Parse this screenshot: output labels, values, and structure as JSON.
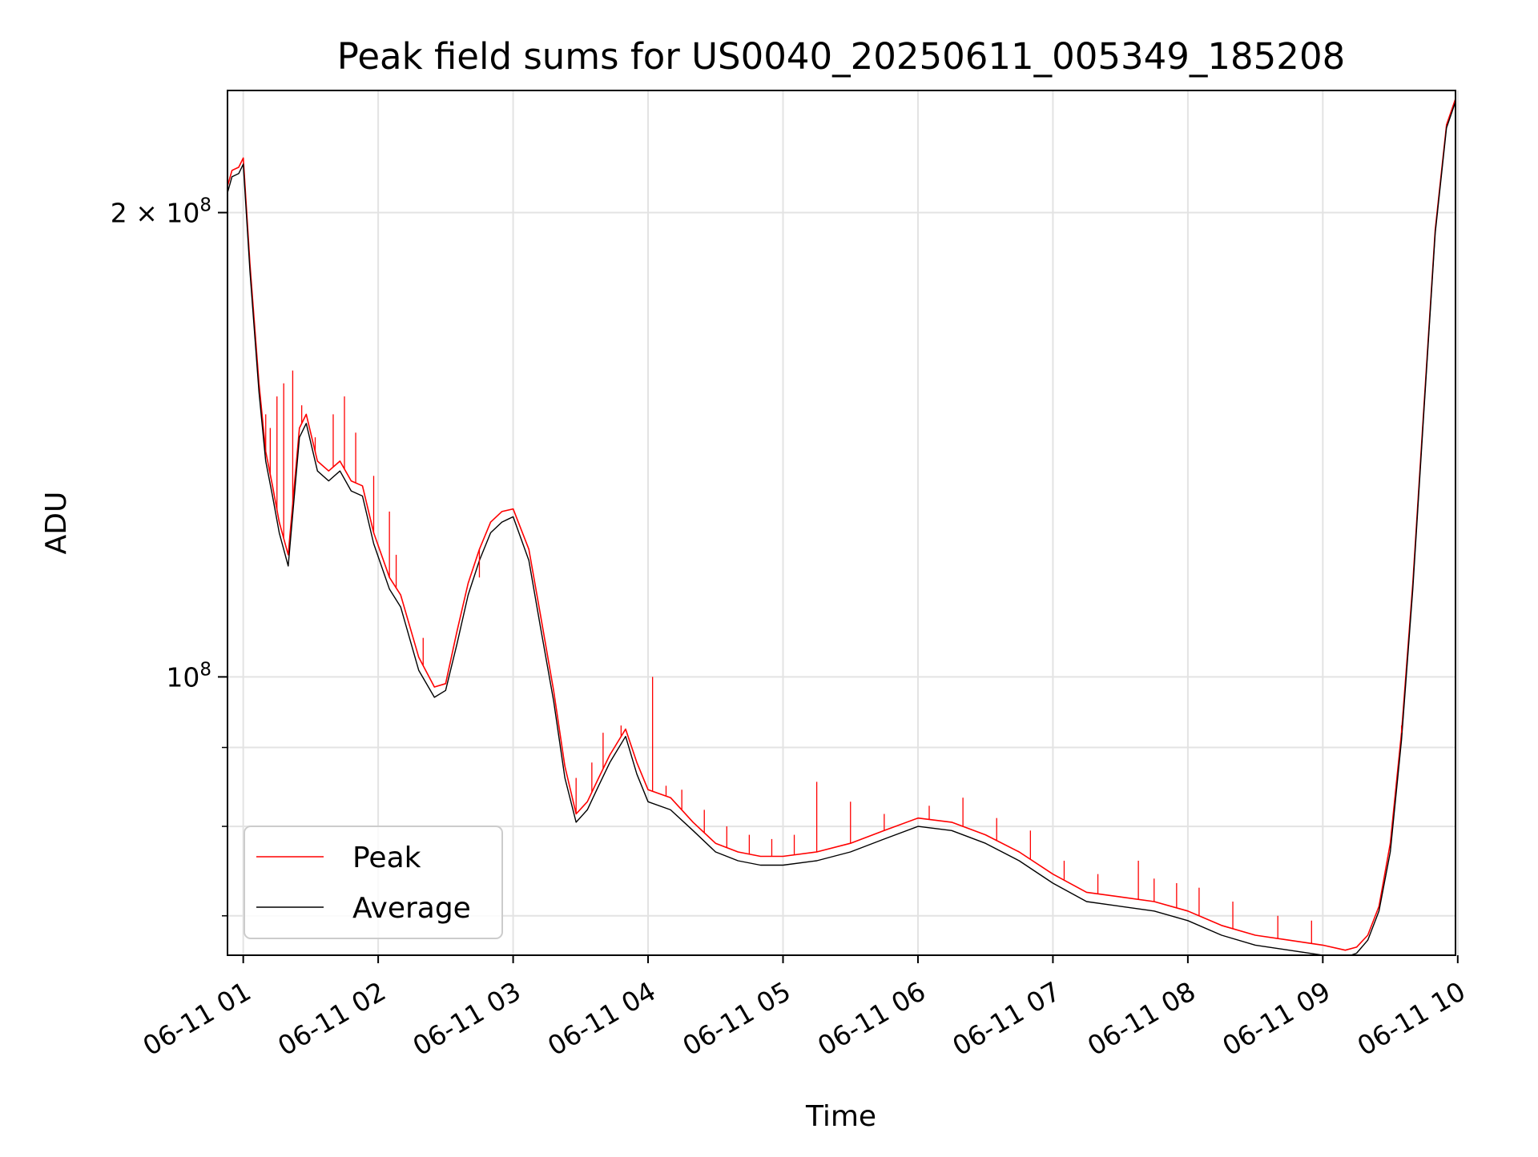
{
  "chart_data": {
    "type": "line",
    "title": "Peak field sums for US0040_20250611_005349_185208",
    "xlabel": "Time",
    "ylabel": "ADU",
    "yscale": "log",
    "ylim": [
      66000000,
      240000000
    ],
    "xlim": [
      "2025-06-11 00:53",
      "2025-06-11 09:59"
    ],
    "grid": true,
    "legend_position": "lower-left",
    "x_ticks": [
      {
        "time": "2025-06-11 01:00",
        "label": "06-11 01"
      },
      {
        "time": "2025-06-11 02:00",
        "label": "06-11 02"
      },
      {
        "time": "2025-06-11 03:00",
        "label": "06-11 03"
      },
      {
        "time": "2025-06-11 04:00",
        "label": "06-11 04"
      },
      {
        "time": "2025-06-11 05:00",
        "label": "06-11 05"
      },
      {
        "time": "2025-06-11 06:00",
        "label": "06-11 06"
      },
      {
        "time": "2025-06-11 07:00",
        "label": "06-11 07"
      },
      {
        "time": "2025-06-11 08:00",
        "label": "06-11 08"
      },
      {
        "time": "2025-06-11 09:00",
        "label": "06-11 09"
      },
      {
        "time": "2025-06-11 10:00",
        "label": "06-11 10"
      }
    ],
    "y_ticks": [
      {
        "value": 200000000,
        "label_base": "2 × 10",
        "label_exp": "8"
      },
      {
        "value": 100000000,
        "label_base": "10",
        "label_exp": "8"
      }
    ],
    "y_minor_ticks": [
      70000000,
      80000000,
      90000000
    ],
    "series": [
      {
        "name": "Peak",
        "color": "#ff0000",
        "time": [
          "00:53",
          "00:55",
          "00:58",
          "01:00",
          "01:03",
          "01:07",
          "01:10",
          "01:13",
          "01:16",
          "01:20",
          "01:25",
          "01:28",
          "01:33",
          "01:38",
          "01:43",
          "01:48",
          "01:53",
          "01:58",
          "02:05",
          "02:10",
          "02:18",
          "02:25",
          "02:30",
          "02:35",
          "02:40",
          "02:45",
          "02:50",
          "02:55",
          "03:00",
          "03:07",
          "03:12",
          "03:18",
          "03:23",
          "03:28",
          "03:33",
          "03:38",
          "03:43",
          "03:50",
          "03:55",
          "04:00",
          "04:10",
          "04:20",
          "04:30",
          "04:40",
          "04:50",
          "05:00",
          "05:15",
          "05:30",
          "05:45",
          "06:00",
          "06:15",
          "06:30",
          "06:45",
          "07:00",
          "07:15",
          "07:30",
          "07:45",
          "08:00",
          "08:15",
          "08:30",
          "08:45",
          "09:00",
          "09:10",
          "09:15",
          "09:20",
          "09:25",
          "09:30",
          "09:35",
          "09:40",
          "09:45",
          "09:50",
          "09:55",
          "09:59"
        ],
        "values": [
          208000000,
          213000000,
          214000000,
          217000000,
          185000000,
          155000000,
          140000000,
          133000000,
          126000000,
          120000000,
          145000000,
          148000000,
          138000000,
          136000000,
          138000000,
          134000000,
          133000000,
          124000000,
          116000000,
          113000000,
          103000000,
          98500000,
          99000000,
          107000000,
          115000000,
          121000000,
          126000000,
          128000000,
          128500000,
          121000000,
          110000000,
          98000000,
          87500000,
          81500000,
          83000000,
          86000000,
          89000000,
          92500000,
          88000000,
          84500000,
          83500000,
          80500000,
          78000000,
          77000000,
          76500000,
          76500000,
          77000000,
          78000000,
          79500000,
          81000000,
          80500000,
          79000000,
          77000000,
          74500000,
          72500000,
          72000000,
          71500000,
          70500000,
          69000000,
          68000000,
          67500000,
          67000000,
          66500000,
          66800000,
          68000000,
          71000000,
          78000000,
          92000000,
          115000000,
          150000000,
          195000000,
          228000000,
          237000000
        ]
      },
      {
        "name": "Average",
        "color": "#000000",
        "time": [
          "00:53",
          "00:55",
          "00:58",
          "01:00",
          "01:03",
          "01:07",
          "01:10",
          "01:13",
          "01:16",
          "01:20",
          "01:25",
          "01:28",
          "01:33",
          "01:38",
          "01:43",
          "01:48",
          "01:53",
          "01:58",
          "02:05",
          "02:10",
          "02:18",
          "02:25",
          "02:30",
          "02:35",
          "02:40",
          "02:45",
          "02:50",
          "02:55",
          "03:00",
          "03:07",
          "03:12",
          "03:18",
          "03:23",
          "03:28",
          "03:33",
          "03:38",
          "03:43",
          "03:50",
          "03:55",
          "04:00",
          "04:10",
          "04:20",
          "04:30",
          "04:40",
          "04:50",
          "05:00",
          "05:15",
          "05:30",
          "05:45",
          "06:00",
          "06:15",
          "06:30",
          "06:45",
          "07:00",
          "07:15",
          "07:30",
          "07:45",
          "08:00",
          "08:15",
          "08:30",
          "08:45",
          "09:00",
          "09:10",
          "09:15",
          "09:20",
          "09:25",
          "09:30",
          "09:35",
          "09:40",
          "09:45",
          "09:50",
          "09:55",
          "09:59"
        ],
        "values": [
          206000000,
          211000000,
          212000000,
          215000000,
          183000000,
          153000000,
          138000000,
          131000000,
          124000000,
          118000000,
          143000000,
          146000000,
          136000000,
          134000000,
          136000000,
          132000000,
          131000000,
          122000000,
          114000000,
          111000000,
          101000000,
          97000000,
          98000000,
          105000000,
          113000000,
          119000000,
          124000000,
          126000000,
          127000000,
          119000000,
          108000000,
          96500000,
          86000000,
          80500000,
          82000000,
          85000000,
          88000000,
          91500000,
          86500000,
          83000000,
          82000000,
          79500000,
          77000000,
          76000000,
          75500000,
          75500000,
          76000000,
          77000000,
          78500000,
          80000000,
          79500000,
          78000000,
          76000000,
          73500000,
          71500000,
          71000000,
          70500000,
          69500000,
          68000000,
          67000000,
          66500000,
          66000000,
          65800000,
          66200000,
          67500000,
          70500000,
          77000000,
          91000000,
          114000000,
          149000000,
          194000000,
          227000000,
          236000000
        ]
      }
    ],
    "spikes": {
      "series": "Peak",
      "time": [
        "01:08",
        "01:10",
        "01:12",
        "01:15",
        "01:18",
        "01:22",
        "01:26",
        "01:32",
        "01:40",
        "01:45",
        "01:50",
        "01:58",
        "02:05",
        "02:08",
        "02:20",
        "02:32",
        "02:45",
        "03:28",
        "03:35",
        "03:40",
        "03:48",
        "04:02",
        "04:08",
        "04:15",
        "04:25",
        "04:35",
        "04:45",
        "04:55",
        "05:05",
        "05:15",
        "05:30",
        "05:45",
        "06:05",
        "06:20",
        "06:35",
        "06:50",
        "07:05",
        "07:20",
        "07:38",
        "07:45",
        "07:55",
        "08:05",
        "08:20",
        "08:40",
        "08:55",
        "09:35"
      ],
      "values": [
        150000000,
        148000000,
        145000000,
        152000000,
        155000000,
        158000000,
        150000000,
        143000000,
        148000000,
        152000000,
        144000000,
        135000000,
        128000000,
        120000000,
        106000000,
        102000000,
        116000000,
        86000000,
        88000000,
        92000000,
        93000000,
        100000000,
        85000000,
        84500000,
        82000000,
        80000000,
        79000000,
        78500000,
        79000000,
        85500000,
        83000000,
        81500000,
        82500000,
        83500000,
        81000000,
        79500000,
        76000000,
        74500000,
        76000000,
        74000000,
        73500000,
        73000000,
        71500000,
        70000000,
        69500000,
        93000000
      ]
    }
  }
}
